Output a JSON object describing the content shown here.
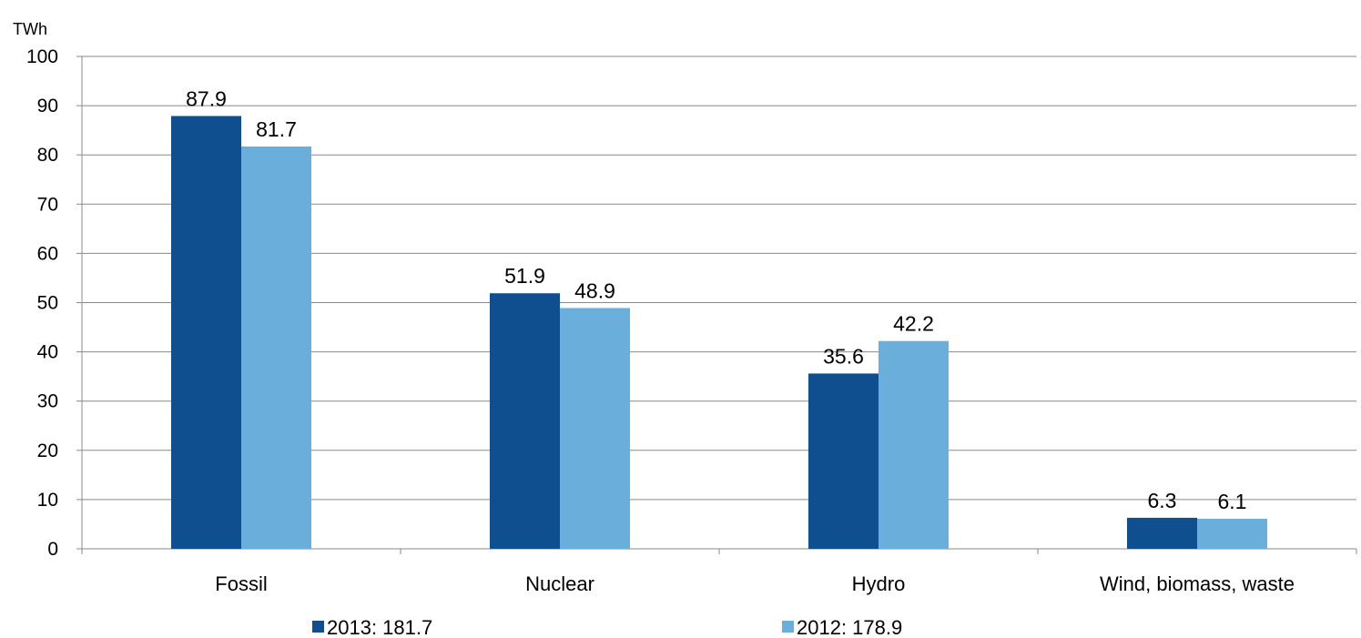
{
  "chart_data": {
    "type": "bar",
    "title": "",
    "xlabel": "",
    "ylabel": "TWh",
    "ylim": [
      0,
      100
    ],
    "yticks": [
      0,
      10,
      20,
      30,
      40,
      50,
      60,
      70,
      80,
      90,
      100
    ],
    "categories": [
      "Fossil",
      "Nuclear",
      "Hydro",
      "Wind, biomass, waste"
    ],
    "series": [
      {
        "name": "2013: 181.7",
        "color": "#0f4f8f",
        "values": [
          87.9,
          51.9,
          35.6,
          6.3
        ]
      },
      {
        "name": "2012: 178.9",
        "color": "#6aaedc",
        "values": [
          81.7,
          48.9,
          42.2,
          6.1
        ]
      }
    ],
    "grid": true,
    "legend_position": "bottom"
  }
}
